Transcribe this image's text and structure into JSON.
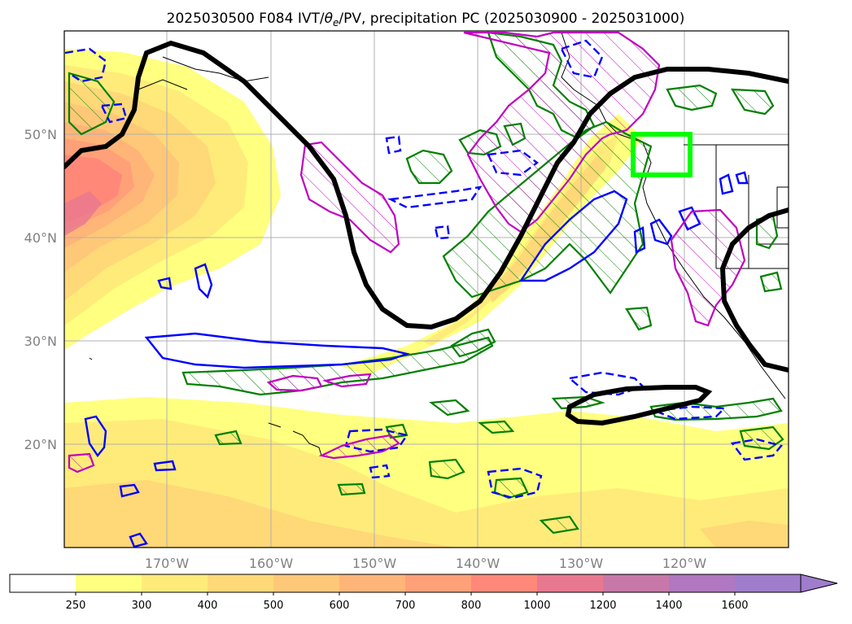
{
  "title": "2025030500 F084 IVT/θe/PV, precipitation PC (2025030900 - 2025031000)",
  "title_parts": {
    "pre": "2025030500 F084 IVT/",
    "theta": "θ",
    "sub": "e",
    "post": "/PV, precipitation PC (2025030900 - 2025031000)"
  },
  "map": {
    "region": "North Pacific",
    "lon_range": [
      "180°",
      "110°W"
    ],
    "lat_range": [
      "10°N",
      "60°N"
    ],
    "lat_ticks": [
      "20°N",
      "30°N",
      "40°N",
      "50°N"
    ],
    "lon_ticks": [
      "170°W",
      "160°W",
      "150°W",
      "140°W",
      "130°W",
      "120°W"
    ],
    "grid": true,
    "layers": [
      {
        "name": "IVT",
        "style": "filled contours",
        "colormap": "yellow-orange-red-purple"
      },
      {
        "name": "theta-e",
        "style": "thick black contour",
        "color": "#000000"
      },
      {
        "name": "PV",
        "style": "magenta hatched contour",
        "color": "#c000c0"
      },
      {
        "name": "precipitation PC positive",
        "style": "green hatched contour",
        "color": "#008000"
      },
      {
        "name": "precipitation PC negative",
        "style": "blue solid/dashed contour",
        "color": "#0000ff"
      },
      {
        "name": "highlight box",
        "style": "bright green rectangle",
        "color": "#00ff00"
      }
    ]
  },
  "colorbar": {
    "labels": [
      "250",
      "300",
      "400",
      "500",
      "600",
      "700",
      "800",
      "1000",
      "1200",
      "1400",
      "1600"
    ],
    "colors": [
      "#ffffff",
      "#ffff80",
      "#ffeb7a",
      "#ffd878",
      "#ffc878",
      "#ffb478",
      "#ffa078",
      "#ff8878",
      "#e87890",
      "#c878a8",
      "#b078c0",
      "#a07ccc"
    ],
    "extend": "max"
  }
}
